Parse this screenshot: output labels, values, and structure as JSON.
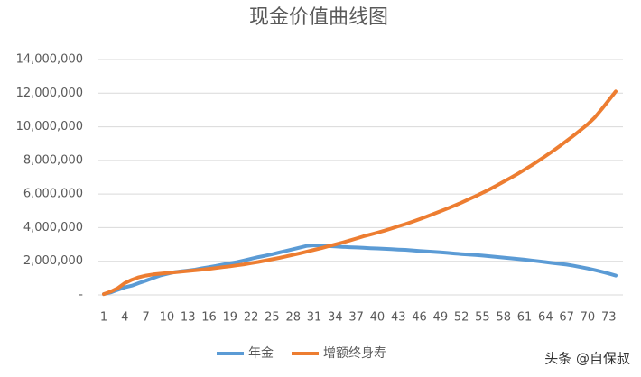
{
  "chart_data": {
    "type": "line",
    "title": "现金价值曲线图",
    "categories": [
      1,
      null,
      null,
      4,
      null,
      null,
      7,
      null,
      null,
      10,
      null,
      null,
      13,
      null,
      null,
      16,
      null,
      null,
      19,
      null,
      null,
      22,
      null,
      null,
      25,
      null,
      null,
      28,
      null,
      null,
      31,
      null,
      null,
      34,
      null,
      null,
      37,
      null,
      null,
      40,
      null,
      null,
      43,
      null,
      null,
      46,
      null,
      null,
      49,
      null,
      null,
      52,
      null,
      null,
      55,
      null,
      null,
      58,
      null,
      null,
      61,
      null,
      null,
      64,
      null,
      null,
      67,
      null,
      null,
      70,
      null,
      null,
      73,
      null
    ],
    "series": [
      {
        "name": "年金",
        "color": "#5b9bd5",
        "values": [
          50000,
          150000,
          300000,
          450000,
          550000,
          700000,
          850000,
          1000000,
          1150000,
          1250000,
          1350000,
          1400000,
          1450000,
          1500000,
          1580000,
          1650000,
          1720000,
          1800000,
          1880000,
          1950000,
          2050000,
          2150000,
          2250000,
          2330000,
          2420000,
          2520000,
          2620000,
          2720000,
          2820000,
          2920000,
          2950000,
          2930000,
          2900000,
          2880000,
          2860000,
          2840000,
          2820000,
          2800000,
          2780000,
          2760000,
          2740000,
          2720000,
          2700000,
          2680000,
          2650000,
          2620000,
          2590000,
          2560000,
          2530000,
          2500000,
          2460000,
          2430000,
          2400000,
          2370000,
          2340000,
          2300000,
          2260000,
          2220000,
          2180000,
          2140000,
          2100000,
          2050000,
          2000000,
          1950000,
          1900000,
          1850000,
          1800000,
          1730000,
          1650000,
          1570000,
          1480000,
          1380000,
          1270000,
          1150000
        ]
      },
      {
        "name": "增额终身寿",
        "color": "#ed7d31",
        "values": [
          50000,
          200000,
          400000,
          700000,
          900000,
          1050000,
          1150000,
          1220000,
          1260000,
          1300000,
          1340000,
          1380000,
          1420000,
          1460000,
          1500000,
          1550000,
          1600000,
          1650000,
          1700000,
          1760000,
          1820000,
          1890000,
          1960000,
          2040000,
          2120000,
          2200000,
          2290000,
          2380000,
          2480000,
          2580000,
          2680000,
          2780000,
          2890000,
          3000000,
          3110000,
          3230000,
          3350000,
          3480000,
          3590000,
          3700000,
          3820000,
          3950000,
          4080000,
          4210000,
          4350000,
          4500000,
          4650000,
          4810000,
          4970000,
          5140000,
          5310000,
          5490000,
          5680000,
          5870000,
          6070000,
          6280000,
          6500000,
          6730000,
          6960000,
          7200000,
          7450000,
          7710000,
          7980000,
          8260000,
          8550000,
          8850000,
          9160000,
          9480000,
          9810000,
          10150000,
          10550000,
          11050000,
          11570000,
          12100000
        ]
      }
    ],
    "ylim": [
      0,
      14000000
    ],
    "yticks": [
      {
        "value": 0,
        "label": "-"
      },
      {
        "value": 2000000,
        "label": "2,000,000"
      },
      {
        "value": 4000000,
        "label": "4,000,000"
      },
      {
        "value": 6000000,
        "label": "6,000,000"
      },
      {
        "value": 8000000,
        "label": "8,000,000"
      },
      {
        "value": 10000000,
        "label": "10,000,000"
      },
      {
        "value": 12000000,
        "label": "12,000,000"
      },
      {
        "value": 14000000,
        "label": "14,000,000"
      }
    ],
    "grid": true,
    "legend": "bottom",
    "watermark": "头条 @自保叔"
  }
}
